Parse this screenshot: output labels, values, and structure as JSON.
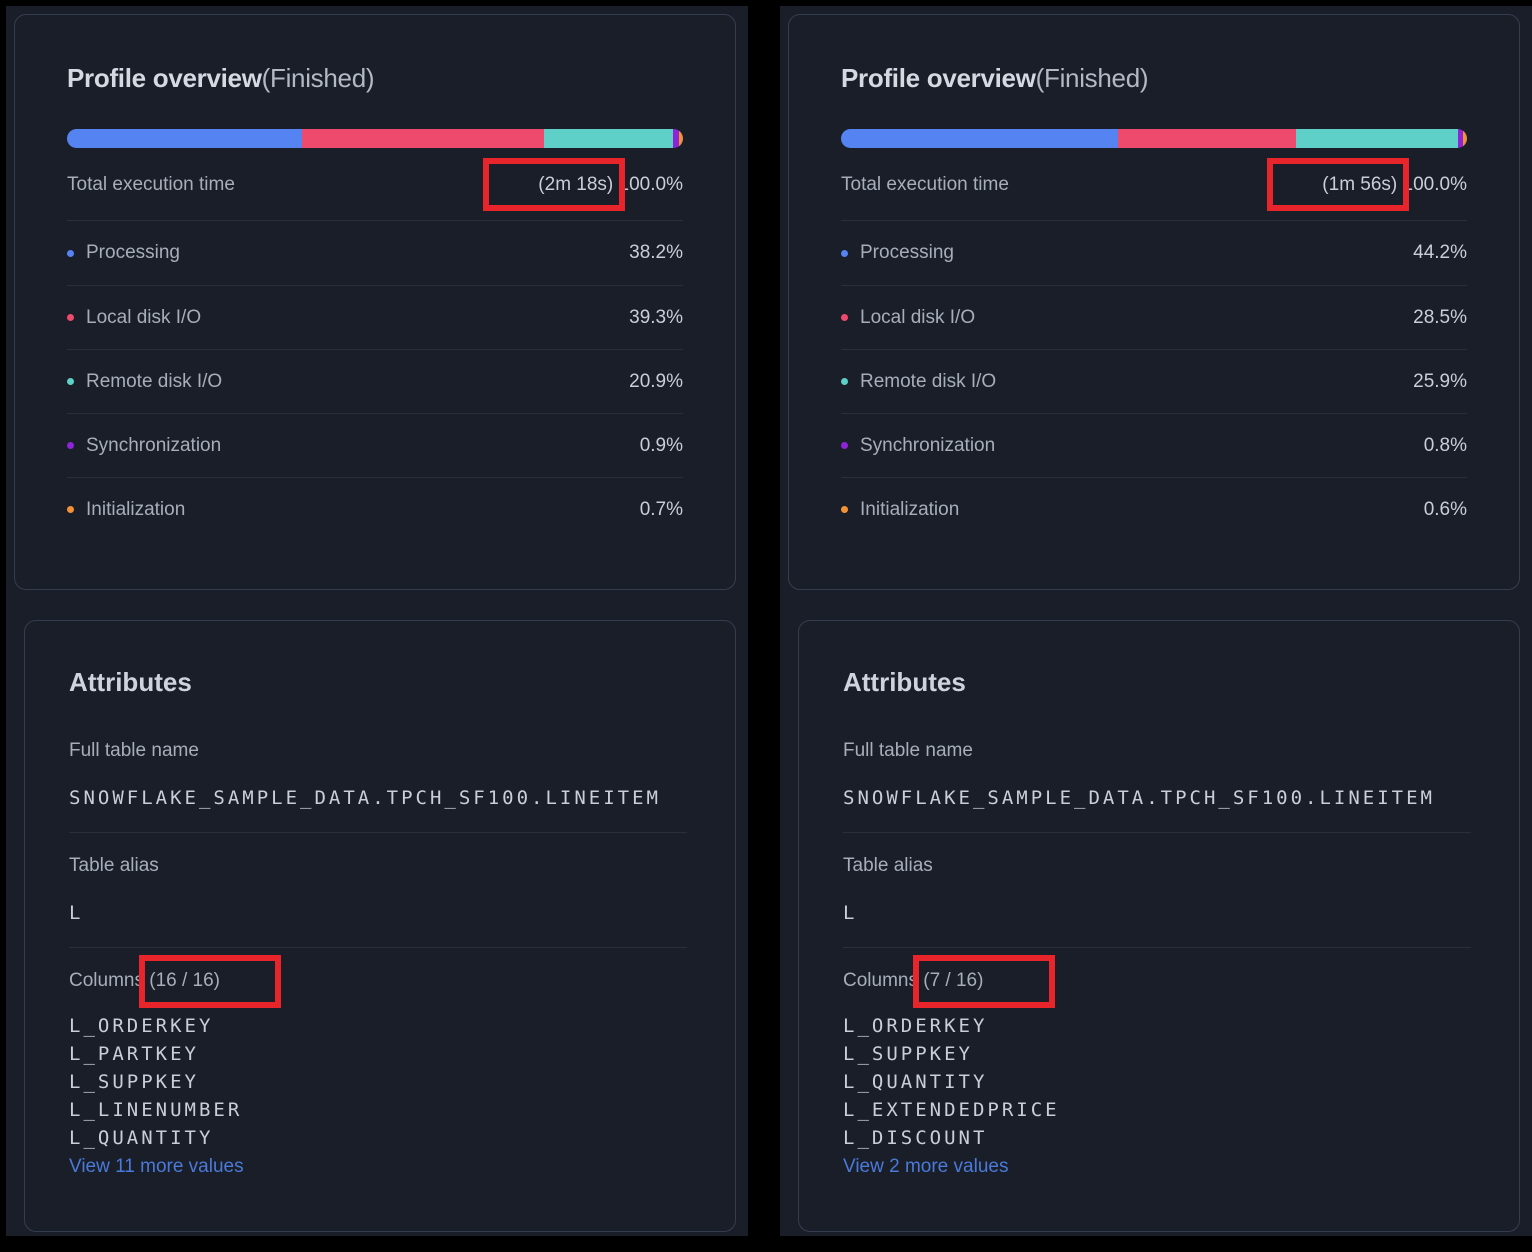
{
  "colors": {
    "page_bg": "#000000",
    "panel_bg": "#1a1e28",
    "card_border": "#353d50",
    "annotation_red": "#e8252a",
    "link_blue": "#4a7ad9"
  },
  "panels": [
    {
      "profile": {
        "title": "Profile overview",
        "status": "(Finished)",
        "total_label": "Total execution time",
        "total_time": "(2m 18s)",
        "total_percent": "100.0%",
        "rows": [
          {
            "label": "Processing",
            "value": "38.2%",
            "pct": 38.2,
            "color": "#5584f2"
          },
          {
            "label": "Local disk I/O",
            "value": "39.3%",
            "pct": 39.3,
            "color": "#ee4a6e"
          },
          {
            "label": "Remote disk I/O",
            "value": "20.9%",
            "pct": 20.9,
            "color": "#5fd0c7"
          },
          {
            "label": "Synchronization",
            "value": "0.9%",
            "pct": 0.9,
            "color": "#8e24d8"
          },
          {
            "label": "Initialization",
            "value": "0.7%",
            "pct": 0.7,
            "color": "#f29136"
          }
        ]
      },
      "attributes": {
        "title": "Attributes",
        "full_table_label": "Full table name",
        "full_table_value": "SNOWFLAKE_SAMPLE_DATA.TPCH_SF100.LINEITEM",
        "alias_label": "Table alias",
        "alias_value": "L",
        "columns_label": "Columns (16 / 16)",
        "columns": [
          "L_ORDERKEY",
          "L_PARTKEY",
          "L_SUPPKEY",
          "L_LINENUMBER",
          "L_QUANTITY"
        ],
        "more_link": "View 11 more values"
      }
    },
    {
      "profile": {
        "title": "Profile overview",
        "status": "(Finished)",
        "total_label": "Total execution time",
        "total_time": "(1m 56s)",
        "total_percent": "100.0%",
        "rows": [
          {
            "label": "Processing",
            "value": "44.2%",
            "pct": 44.2,
            "color": "#5584f2"
          },
          {
            "label": "Local disk I/O",
            "value": "28.5%",
            "pct": 28.5,
            "color": "#ee4a6e"
          },
          {
            "label": "Remote disk I/O",
            "value": "25.9%",
            "pct": 25.9,
            "color": "#5fd0c7"
          },
          {
            "label": "Synchronization",
            "value": "0.8%",
            "pct": 0.8,
            "color": "#8e24d8"
          },
          {
            "label": "Initialization",
            "value": "0.6%",
            "pct": 0.6,
            "color": "#f29136"
          }
        ]
      },
      "attributes": {
        "title": "Attributes",
        "full_table_label": "Full table name",
        "full_table_value": "SNOWFLAKE_SAMPLE_DATA.TPCH_SF100.LINEITEM",
        "alias_label": "Table alias",
        "alias_value": "L",
        "columns_label": "Columns (7 / 16)",
        "columns": [
          "L_ORDERKEY",
          "L_SUPPKEY",
          "L_QUANTITY",
          "L_EXTENDEDPRICE",
          "L_DISCOUNT"
        ],
        "more_link": "View 2 more values"
      }
    }
  ]
}
